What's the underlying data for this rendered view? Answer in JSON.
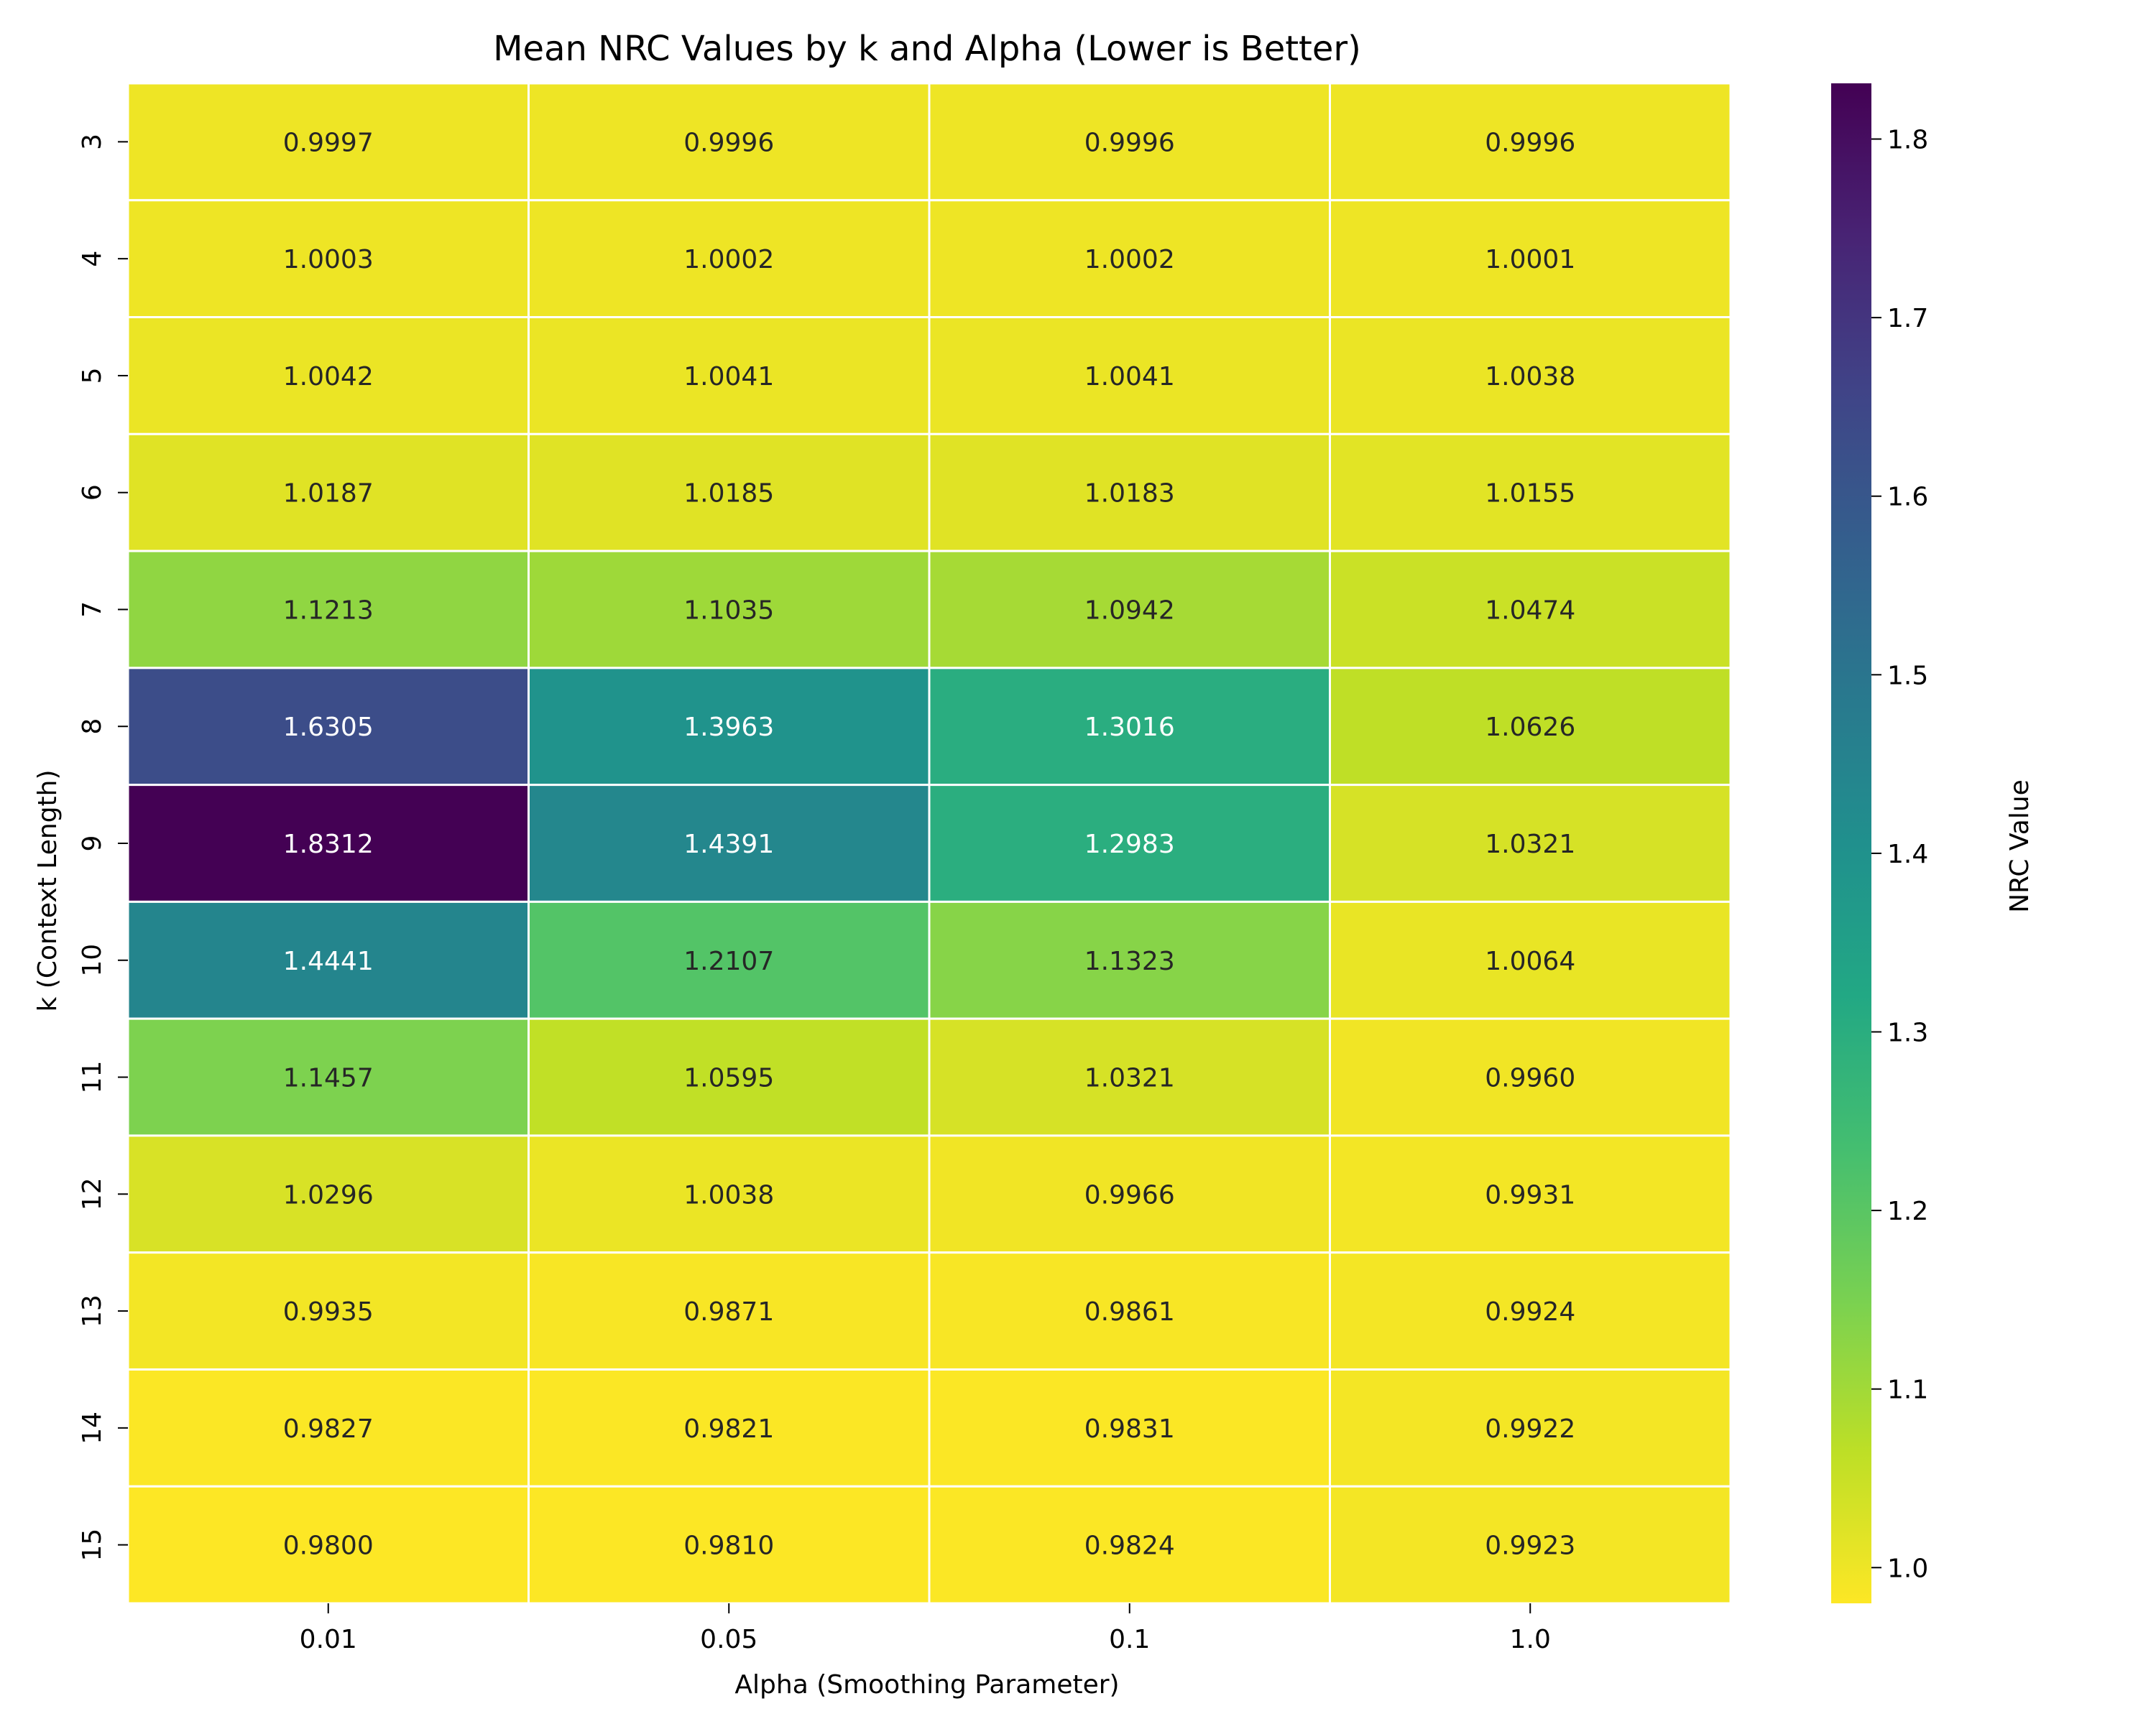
{
  "chart_data": {
    "type": "heatmap",
    "title": "Mean NRC Values by k and Alpha (Lower is Better)",
    "xlabel": "Alpha (Smoothing Parameter)",
    "ylabel": "k (Context Length)",
    "x_categories": [
      "0.01",
      "0.05",
      "0.1",
      "1.0"
    ],
    "y_categories": [
      "3",
      "4",
      "5",
      "6",
      "7",
      "8",
      "9",
      "10",
      "11",
      "12",
      "13",
      "14",
      "15"
    ],
    "values": [
      [
        0.9997,
        0.9996,
        0.9996,
        0.9996
      ],
      [
        1.0003,
        1.0002,
        1.0002,
        1.0001
      ],
      [
        1.0042,
        1.0041,
        1.0041,
        1.0038
      ],
      [
        1.0187,
        1.0185,
        1.0183,
        1.0155
      ],
      [
        1.1213,
        1.1035,
        1.0942,
        1.0474
      ],
      [
        1.6305,
        1.3963,
        1.3016,
        1.0626
      ],
      [
        1.8312,
        1.4391,
        1.2983,
        1.0321
      ],
      [
        1.4441,
        1.2107,
        1.1323,
        1.0064
      ],
      [
        1.1457,
        1.0595,
        1.0321,
        0.996
      ],
      [
        1.0296,
        1.0038,
        0.9966,
        0.9931
      ],
      [
        0.9935,
        0.9871,
        0.9861,
        0.9924
      ],
      [
        0.9827,
        0.9821,
        0.9831,
        0.9922
      ],
      [
        0.98,
        0.981,
        0.9824,
        0.9923
      ]
    ],
    "value_format": "4 decimals",
    "colormap": "viridis_r",
    "colorbar": {
      "label": "NRC Value",
      "vmin": 0.98,
      "vmax": 1.8312,
      "ticks": [
        "1.0",
        "1.1",
        "1.2",
        "1.3",
        "1.4",
        "1.5",
        "1.6",
        "1.7",
        "1.8"
      ]
    },
    "gridline_color": "#ffffff"
  }
}
